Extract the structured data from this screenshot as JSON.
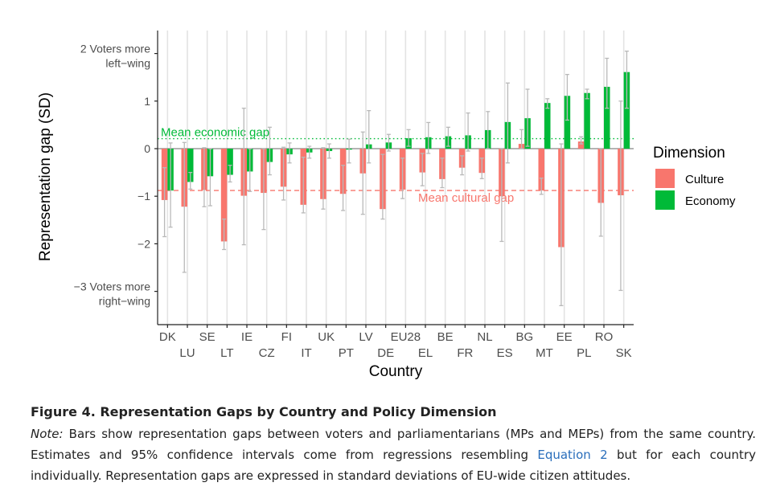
{
  "chart_data": {
    "type": "bar",
    "xlabel": "Country",
    "ylabel": "Representation gap (SD)",
    "ylim": [
      -3.7,
      2.45
    ],
    "yticks": [
      {
        "value": 2,
        "label_lines": [
          "2 Voters more",
          "left−wing"
        ]
      },
      {
        "value": 1,
        "label_lines": [
          "1"
        ]
      },
      {
        "value": 0,
        "label_lines": [
          "0"
        ]
      },
      {
        "value": -1,
        "label_lines": [
          "−1"
        ]
      },
      {
        "value": -2,
        "label_lines": [
          "−2"
        ]
      },
      {
        "value": -3,
        "label_lines": [
          "−3 Voters more",
          "right−wing"
        ]
      }
    ],
    "categories": [
      "DK",
      "LU",
      "SE",
      "LT",
      "IE",
      "CZ",
      "FI",
      "IT",
      "UK",
      "PT",
      "LV",
      "DE",
      "EU28",
      "EL",
      "BE",
      "FR",
      "NL",
      "ES",
      "BG",
      "MT",
      "EE",
      "PL",
      "RO",
      "SK"
    ],
    "series": [
      {
        "name": "Culture",
        "color": "#F8766D",
        "values": [
          -1.08,
          -1.22,
          -0.87,
          -1.95,
          -0.99,
          -0.93,
          -0.8,
          -1.18,
          -1.06,
          -0.95,
          -0.52,
          -1.27,
          -0.86,
          -0.5,
          -0.64,
          -0.4,
          -0.51,
          -1.0,
          0.1,
          -0.88,
          -2.07,
          0.15,
          -1.14,
          -0.98
        ],
        "ci_low": [
          -1.85,
          -2.6,
          -1.22,
          -2.12,
          -2.02,
          -1.7,
          -1.08,
          -1.35,
          -1.27,
          -1.3,
          -1.38,
          -1.48,
          -1.05,
          -0.78,
          -0.82,
          -0.55,
          -0.63,
          -1.95,
          0.0,
          -0.96,
          -3.3,
          0.1,
          -1.84,
          -2.98
        ],
        "ci_high": [
          -0.4,
          0.13,
          0.02,
          -1.48,
          0.85,
          0.0,
          0.03,
          -0.18,
          0.02,
          -0.35,
          0.35,
          -0.12,
          -0.2,
          -0.1,
          -0.2,
          -0.15,
          -0.2,
          0.0,
          0.4,
          -0.62,
          0.1,
          0.25,
          0.0,
          1.0
        ]
      },
      {
        "name": "Economy",
        "color": "#00BA38",
        "values": [
          -0.88,
          -0.7,
          -0.58,
          -0.55,
          -0.48,
          -0.28,
          -0.12,
          -0.08,
          -0.05,
          -0.02,
          0.09,
          0.13,
          0.22,
          0.24,
          0.26,
          0.28,
          0.39,
          0.56,
          0.64,
          0.96,
          1.11,
          1.17,
          1.3,
          1.61
        ],
        "ci_low": [
          -1.65,
          -0.85,
          -1.2,
          -0.7,
          -0.9,
          -0.55,
          -0.3,
          -0.2,
          -0.2,
          -0.3,
          -0.3,
          -0.05,
          0.05,
          -0.1,
          0.05,
          -0.05,
          0.0,
          -0.3,
          0.05,
          0.85,
          0.6,
          1.05,
          0.85,
          0.85
        ],
        "ci_high": [
          0.12,
          -0.5,
          0.0,
          -0.35,
          0.0,
          0.45,
          0.12,
          0.05,
          0.1,
          0.2,
          0.8,
          0.3,
          0.4,
          0.55,
          0.45,
          0.75,
          0.78,
          1.38,
          1.25,
          1.05,
          1.56,
          1.25,
          1.9,
          2.05
        ]
      }
    ],
    "reference_lines": [
      {
        "name": "Mean economic gap",
        "value": 0.21,
        "style": "dotted",
        "color": "#00BA38"
      },
      {
        "name": "Mean cultural gap",
        "value": -0.88,
        "style": "dashed",
        "color": "#F8766D"
      }
    ],
    "legend": {
      "title": "Dimension",
      "position": "right"
    },
    "grid": true
  },
  "caption": {
    "title": "Figure 4. Representation Gaps by Country and Policy Dimension",
    "note_label": "Note:",
    "note_part1": " Bars show representation gaps between voters and parliamentarians (MPs and MEPs) from the same country. Estimates and 95% confidence intervals come from regressions resembling ",
    "note_link": "Equation 2",
    "note_part2": " but for each country individually. Representation gaps are expressed in standard deviations of EU-wide citizen attitudes."
  }
}
